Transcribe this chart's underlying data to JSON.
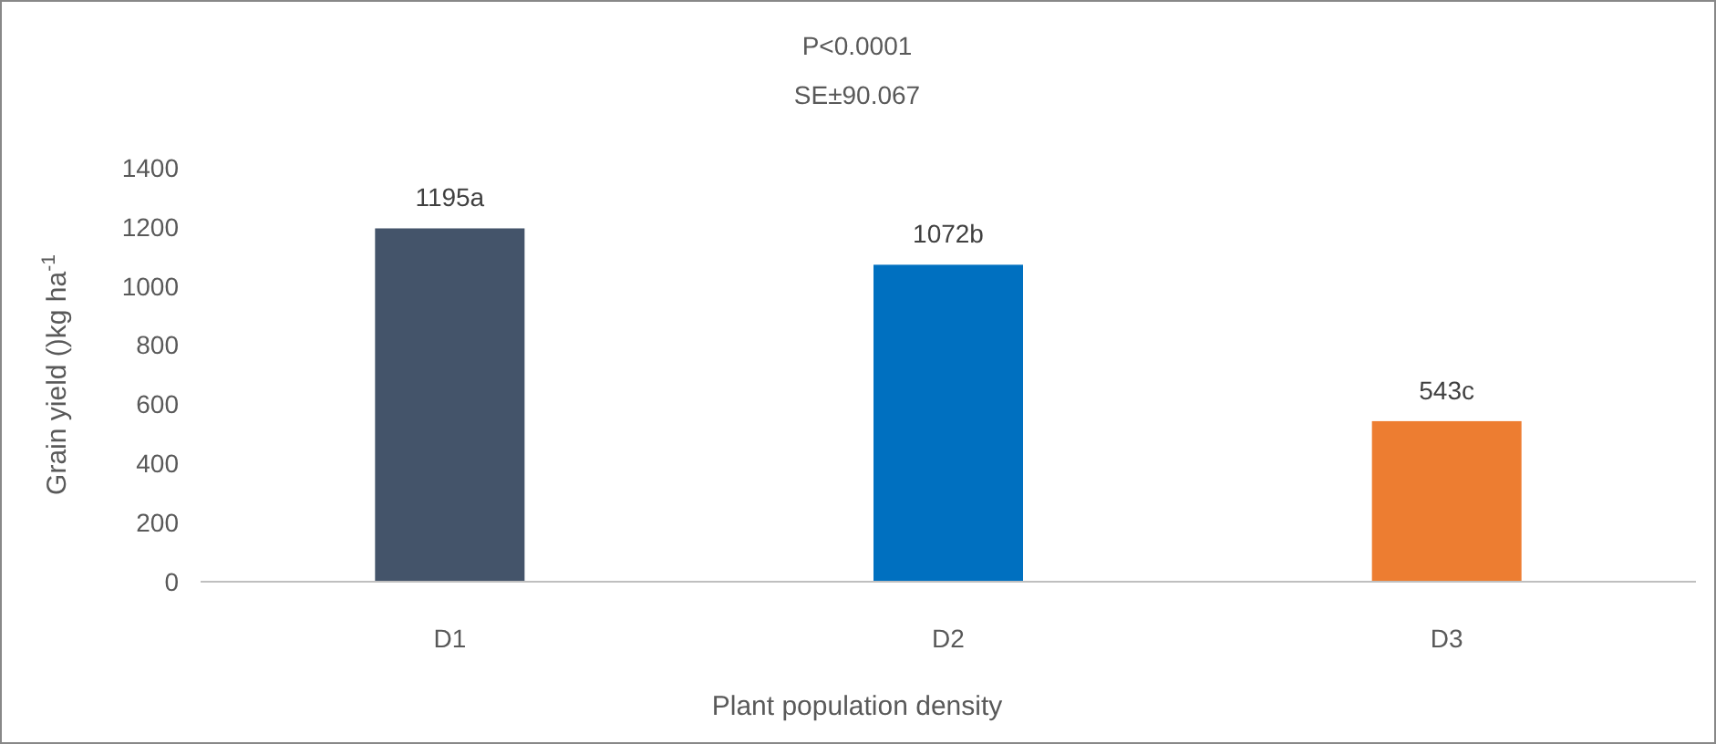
{
  "chart_data": {
    "type": "bar",
    "title": "P<0.0001",
    "subtitle": "SE±90.067",
    "xlabel": "Plant population density",
    "ylabel": "Grain yield ()kg ha$^{-1}$",
    "categories": [
      "D1",
      "D2",
      "D3"
    ],
    "values": [
      1195,
      1072,
      543
    ],
    "colors": [
      "#44546a",
      "#0070c0",
      "#ed7d31"
    ],
    "value_labels": [
      "1195a",
      "1072b",
      "543c"
    ],
    "ylim": [
      0,
      1400
    ],
    "yticks": [
      0,
      200,
      400,
      600,
      800,
      1000,
      1200,
      1400
    ],
    "grid": false
  }
}
